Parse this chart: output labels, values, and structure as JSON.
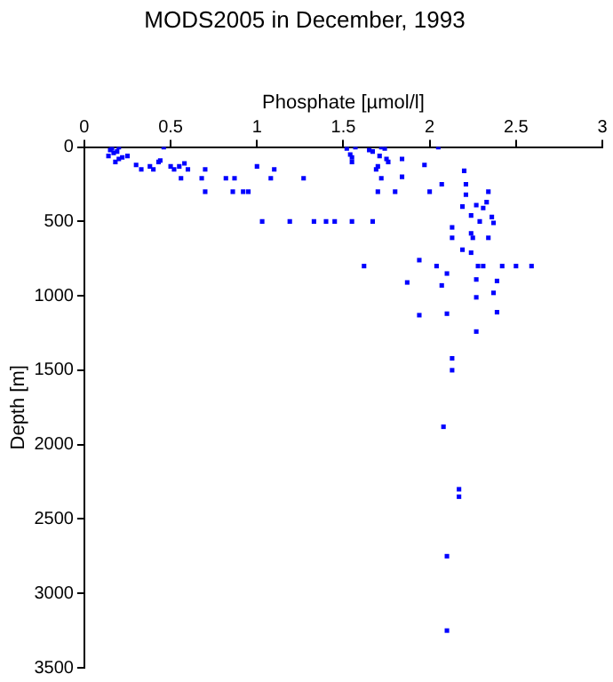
{
  "chart_data": {
    "type": "scatter",
    "title": "MODS2005 in December, 1993",
    "xlabel": "Phosphate [µmol/l]",
    "ylabel": "Depth [m]",
    "xlim": [
      0,
      3
    ],
    "xticks": [
      0,
      0.5,
      1,
      1.5,
      2,
      2.5,
      3
    ],
    "ylim": [
      3500,
      0
    ],
    "yticks": [
      0,
      500,
      1000,
      1500,
      2000,
      2500,
      3000,
      3500
    ],
    "grid": false,
    "legend": false,
    "marker": "square",
    "series": [
      {
        "color": "#0000ff",
        "x": [
          0.15,
          0.17,
          0.14,
          0.19,
          0.2,
          0.22,
          0.25,
          0.18,
          0.16,
          0.2,
          0.46,
          0.3,
          0.33,
          0.38,
          0.4,
          0.44,
          0.43,
          0.5,
          0.52,
          0.55,
          0.58,
          0.6,
          0.56,
          0.68,
          0.7,
          0.7,
          0.82,
          0.87,
          0.86,
          0.92,
          0.95,
          1.0,
          1.1,
          1.08,
          1.27,
          1.03,
          1.19,
          1.33,
          1.4,
          1.45,
          1.55,
          1.67,
          1.52,
          1.57,
          1.54,
          1.55,
          1.55,
          1.65,
          1.67,
          1.72,
          1.74,
          1.71,
          1.75,
          1.76,
          1.69,
          1.7,
          1.72,
          1.7,
          1.8,
          1.84,
          1.84,
          1.97,
          2.05,
          2.07,
          2.0,
          2.2,
          2.21,
          2.21,
          2.19,
          2.34,
          2.33,
          2.31,
          2.27,
          2.24,
          2.36,
          2.37,
          2.29,
          2.13,
          2.24,
          2.25,
          2.13,
          2.34,
          2.19,
          2.24,
          1.94,
          1.62,
          2.04,
          2.28,
          2.31,
          2.42,
          2.5,
          2.59,
          2.1,
          2.07,
          1.87,
          2.27,
          2.39,
          2.37,
          2.27,
          2.39,
          2.1,
          1.94,
          2.27,
          2.13,
          2.13,
          2.08,
          2.17,
          2.17,
          2.1,
          2.1
        ],
        "values": [
          20,
          40,
          60,
          30,
          80,
          70,
          60,
          100,
          10,
          0,
          0,
          120,
          150,
          130,
          150,
          90,
          100,
          130,
          150,
          130,
          110,
          150,
          210,
          210,
          150,
          300,
          210,
          210,
          300,
          300,
          300,
          130,
          150,
          210,
          210,
          500,
          500,
          500,
          500,
          500,
          500,
          500,
          10,
          0,
          50,
          70,
          100,
          20,
          30,
          0,
          10,
          60,
          80,
          100,
          150,
          130,
          210,
          300,
          300,
          80,
          200,
          120,
          0,
          250,
          300,
          160,
          250,
          320,
          400,
          300,
          370,
          410,
          390,
          460,
          470,
          510,
          500,
          540,
          580,
          610,
          610,
          610,
          690,
          710,
          760,
          800,
          800,
          800,
          800,
          800,
          800,
          800,
          850,
          930,
          910,
          890,
          900,
          980,
          1010,
          1110,
          1120,
          1130,
          1240,
          1420,
          1500,
          1880,
          2300,
          2350,
          2750,
          3250
        ]
      }
    ]
  }
}
